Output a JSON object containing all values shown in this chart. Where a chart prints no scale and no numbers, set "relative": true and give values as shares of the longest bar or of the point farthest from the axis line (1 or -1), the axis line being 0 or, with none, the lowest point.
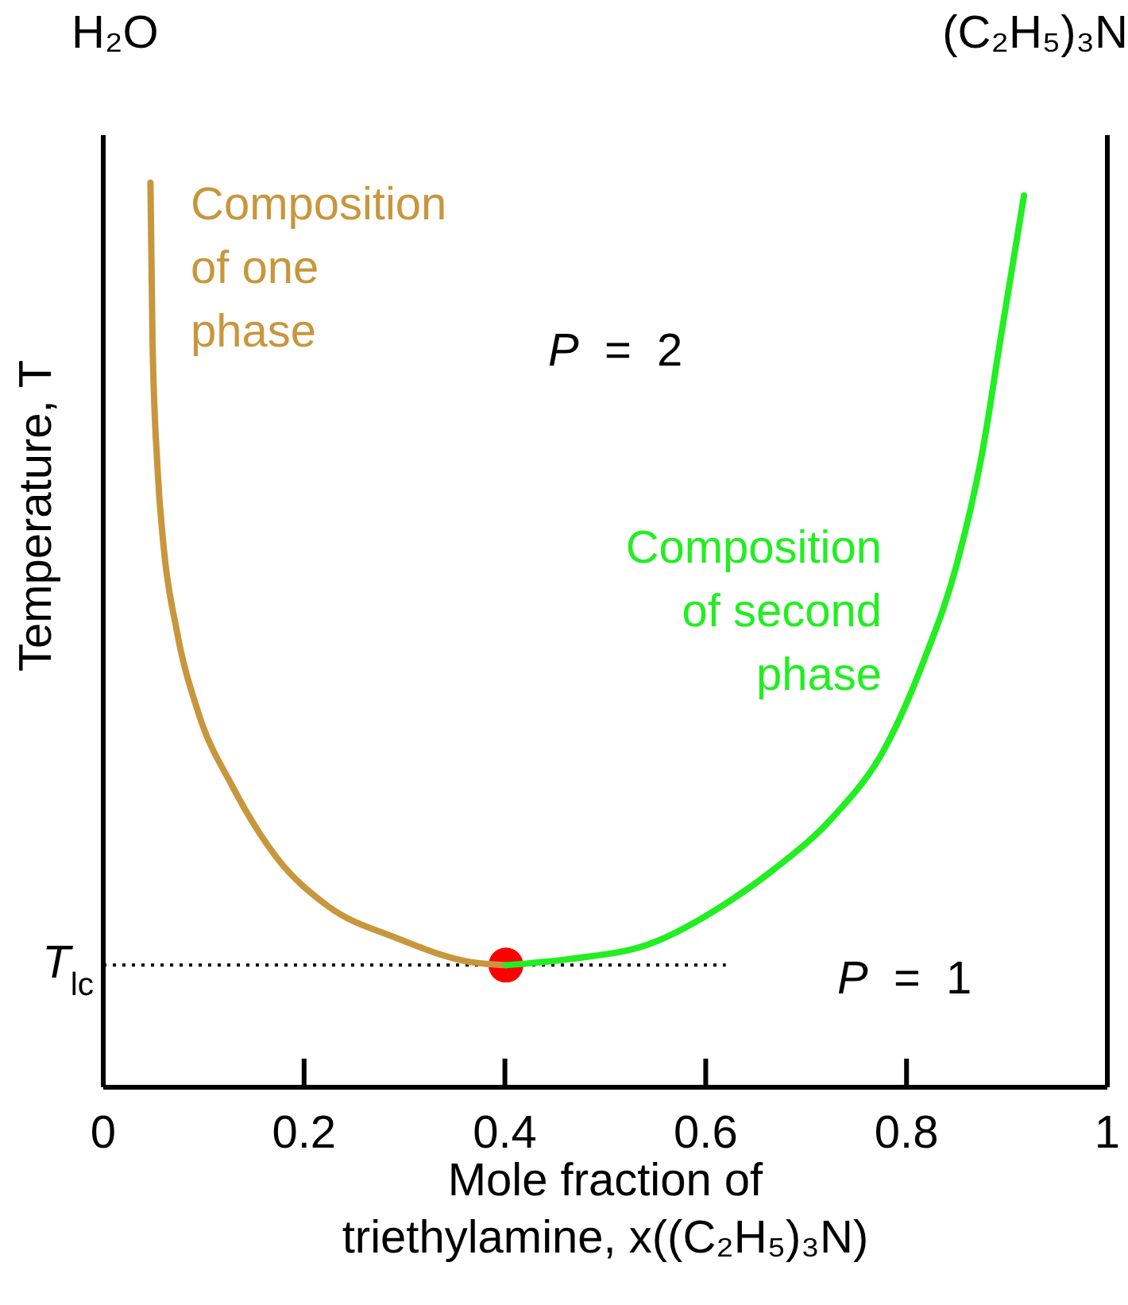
{
  "chart_data": {
    "type": "line",
    "relative": true,
    "xlabel": "Mole fraction of triethylamine, x((C₂H₅)₃N)",
    "ylabel": "Temperature, T",
    "xlim": [
      0,
      1
    ],
    "xticks": [
      0,
      {
        "value": 0.2,
        "label": "0.2"
      },
      {
        "value": 0.4,
        "label": "0.4"
      },
      {
        "value": 0.6,
        "label": "0.6"
      },
      {
        "value": 0.8,
        "label": "0.8"
      },
      1
    ],
    "grid": false,
    "legend": false,
    "series": [
      {
        "name": "Composition of one phase",
        "color": "#c8963c",
        "x": [
          0.047,
          0.049,
          0.054,
          0.06,
          0.073,
          0.095,
          0.128,
          0.172,
          0.224,
          0.292,
          0.363,
          0.401
        ],
        "values": [
          1,
          0.829,
          0.685,
          0.599,
          0.506,
          0.413,
          0.334,
          0.255,
          0.2,
          0.165,
          0.139,
          0.135
        ]
      },
      {
        "name": "Composition of second phase",
        "color": "#22ee22",
        "x": [
          0.401,
          0.466,
          0.543,
          0.624,
          0.668,
          0.727,
          0.779,
          0.817,
          0.85,
          0.875,
          0.894,
          0.917
        ],
        "values": [
          0.135,
          0.142,
          0.158,
          0.206,
          0.241,
          0.299,
          0.376,
          0.471,
          0.578,
          0.699,
          0.83,
          0.986
        ]
      },
      {
        "type": "scatter",
        "marker": "circle",
        "color": "#ff0000",
        "x": [
          0.401
        ],
        "values": [
          0.135
        ]
      }
    ],
    "ref_lines": [
      {
        "axis": "y",
        "value": 0.135,
        "label": "T$_{lc}$",
        "line_style": "dotted",
        "color": "#000000"
      }
    ],
    "annotations": [
      "H₂O",
      "(C₂H₅)₃N",
      "P = 2",
      "P = 1"
    ]
  }
}
